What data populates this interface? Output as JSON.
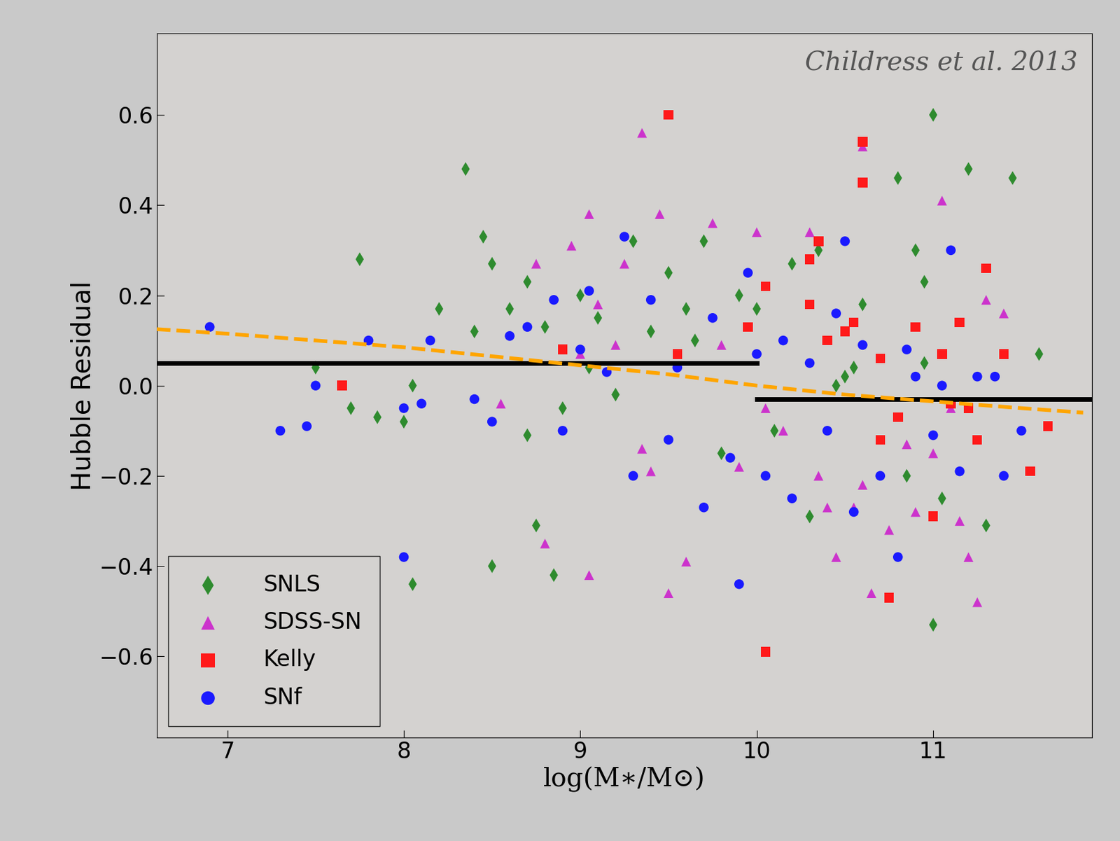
{
  "chart_data": {
    "type": "scatter",
    "x_label": "log(M∗/M⊙)",
    "y_label": "Hubble Residual",
    "annotations": [
      {
        "text": "Childress et al. 2013"
      }
    ],
    "xlim": [
      6.6,
      11.9
    ],
    "ylim": [
      -0.78,
      0.78
    ],
    "xticks": [
      7,
      8,
      9,
      10,
      11
    ],
    "yticks": [
      {
        "value": -0.6,
        "label": "−0.6"
      },
      {
        "value": -0.4,
        "label": "−0.4"
      },
      {
        "value": -0.2,
        "label": "−0.2"
      },
      {
        "value": 0,
        "label": "0.0"
      },
      {
        "value": 0.2,
        "label": "0.2"
      },
      {
        "value": 0.4,
        "label": "0.4"
      },
      {
        "value": 0.6,
        "label": "0.6"
      }
    ],
    "legend": "lower left",
    "series": [
      {
        "name": "SNLS",
        "color": "#2e8b2e",
        "marker": "diamond",
        "x": [
          7.5,
          7.75,
          7.85,
          7.7,
          8.0,
          8.05,
          8.05,
          8.2,
          8.35,
          8.4,
          8.45,
          8.5,
          8.5,
          8.6,
          8.7,
          8.7,
          8.75,
          8.8,
          8.85,
          8.9,
          9.0,
          9.05,
          9.1,
          9.2,
          9.3,
          9.4,
          9.5,
          9.6,
          9.65,
          9.7,
          9.8,
          9.9,
          10.0,
          10.1,
          10.2,
          10.3,
          10.35,
          10.45,
          10.5,
          10.6,
          10.8,
          10.85,
          10.9,
          10.95,
          11.0,
          11.05,
          11.2,
          11.3,
          11.45,
          11.6,
          11.0,
          10.55,
          10.95
        ],
        "values": [
          0.04,
          0.28,
          -0.07,
          -0.05,
          -0.08,
          -0.44,
          0.0,
          0.17,
          0.48,
          0.12,
          0.33,
          0.27,
          -0.4,
          0.17,
          -0.11,
          0.23,
          -0.31,
          0.13,
          -0.42,
          -0.05,
          0.2,
          0.04,
          0.15,
          -0.02,
          0.32,
          0.12,
          0.25,
          0.17,
          0.1,
          0.32,
          -0.15,
          0.2,
          0.17,
          -0.1,
          0.27,
          -0.29,
          0.3,
          0.0,
          0.02,
          0.18,
          0.46,
          -0.2,
          0.3,
          0.23,
          0.6,
          -0.25,
          0.48,
          -0.31,
          0.46,
          0.07,
          -0.53,
          0.04,
          0.05
        ]
      },
      {
        "name": "SDSS-SN",
        "color": "#cc33cc",
        "marker": "triangle",
        "x": [
          8.55,
          8.75,
          8.8,
          8.95,
          9.0,
          9.05,
          9.05,
          9.1,
          9.2,
          9.25,
          9.35,
          9.4,
          9.45,
          9.5,
          9.6,
          9.75,
          9.8,
          9.9,
          10.0,
          10.05,
          10.15,
          10.3,
          10.35,
          10.4,
          10.45,
          10.55,
          10.6,
          10.65,
          10.75,
          10.85,
          10.9,
          11.0,
          11.05,
          11.1,
          11.15,
          11.2,
          11.25,
          11.3,
          11.4,
          9.35,
          10.6
        ],
        "values": [
          -0.04,
          0.27,
          -0.35,
          0.31,
          0.07,
          0.38,
          -0.42,
          0.18,
          0.09,
          0.27,
          -0.14,
          -0.19,
          0.38,
          -0.46,
          -0.39,
          0.36,
          0.09,
          -0.18,
          0.34,
          -0.05,
          -0.1,
          0.34,
          -0.2,
          -0.27,
          -0.38,
          -0.27,
          -0.22,
          -0.46,
          -0.32,
          -0.13,
          -0.28,
          -0.15,
          0.41,
          -0.05,
          -0.3,
          -0.38,
          -0.48,
          0.19,
          0.16,
          0.56,
          0.53
        ]
      },
      {
        "name": "Kelly",
        "color": "#ff1a1a",
        "marker": "square",
        "x": [
          7.65,
          8.9,
          9.5,
          9.55,
          9.95,
          10.05,
          10.3,
          10.35,
          10.3,
          10.5,
          10.55,
          10.6,
          10.6,
          10.7,
          10.75,
          10.8,
          10.9,
          11.0,
          11.05,
          11.1,
          11.15,
          11.25,
          11.3,
          11.4,
          11.55,
          11.65,
          10.4,
          10.7,
          11.2,
          10.05
        ],
        "values": [
          0.0,
          0.08,
          0.6,
          0.07,
          0.13,
          0.22,
          0.28,
          0.32,
          0.18,
          0.12,
          0.14,
          0.54,
          0.45,
          0.06,
          -0.47,
          -0.07,
          0.13,
          -0.29,
          0.07,
          -0.04,
          0.14,
          -0.12,
          0.26,
          0.07,
          -0.19,
          -0.09,
          0.1,
          -0.12,
          -0.05,
          -0.59
        ]
      },
      {
        "name": "SNf",
        "color": "#1a1aff",
        "marker": "circle",
        "x": [
          6.9,
          7.3,
          7.45,
          7.5,
          7.8,
          8.0,
          8.0,
          8.1,
          8.15,
          8.4,
          8.5,
          8.6,
          8.7,
          8.85,
          8.9,
          9.0,
          9.05,
          9.15,
          9.25,
          9.3,
          9.4,
          9.5,
          9.55,
          9.7,
          9.75,
          9.85,
          9.9,
          9.95,
          10.0,
          10.05,
          10.15,
          10.2,
          10.3,
          10.4,
          10.45,
          10.5,
          10.55,
          10.6,
          10.7,
          10.8,
          10.85,
          10.9,
          11.0,
          11.05,
          11.1,
          11.15,
          11.25,
          11.35,
          11.5,
          11.4
        ],
        "values": [
          0.13,
          -0.1,
          -0.09,
          0.0,
          0.1,
          -0.05,
          -0.38,
          -0.04,
          0.1,
          -0.03,
          -0.08,
          0.11,
          0.13,
          0.19,
          -0.1,
          0.08,
          0.21,
          0.03,
          0.33,
          -0.2,
          0.19,
          -0.12,
          0.04,
          -0.27,
          0.15,
          -0.16,
          -0.44,
          0.25,
          0.07,
          -0.2,
          0.1,
          -0.25,
          0.05,
          -0.1,
          0.16,
          0.32,
          -0.28,
          0.09,
          -0.2,
          -0.38,
          0.08,
          0.02,
          -0.11,
          0.0,
          0.3,
          -0.19,
          0.02,
          0.02,
          -0.1,
          -0.2
        ]
      },
      {
        "type": "line",
        "color": "black",
        "line_style": "solid",
        "x": [
          6.6,
          10.0
        ],
        "values": [
          0.05,
          0.05
        ]
      },
      {
        "type": "line",
        "color": "black",
        "line_style": "solid",
        "x": [
          10.0,
          11.9
        ],
        "values": [
          -0.03,
          -0.03
        ]
      },
      {
        "type": "line",
        "color": "#ffa500",
        "line_style": "dashed",
        "x": [
          6.6,
          7.0,
          7.5,
          8.0,
          8.5,
          9.0,
          9.5,
          10.0,
          10.5,
          11.0,
          11.5,
          11.85
        ],
        "values": [
          0.125,
          0.115,
          0.1,
          0.085,
          0.065,
          0.045,
          0.025,
          0.0,
          -0.02,
          -0.035,
          -0.05,
          -0.06
        ]
      }
    ]
  }
}
